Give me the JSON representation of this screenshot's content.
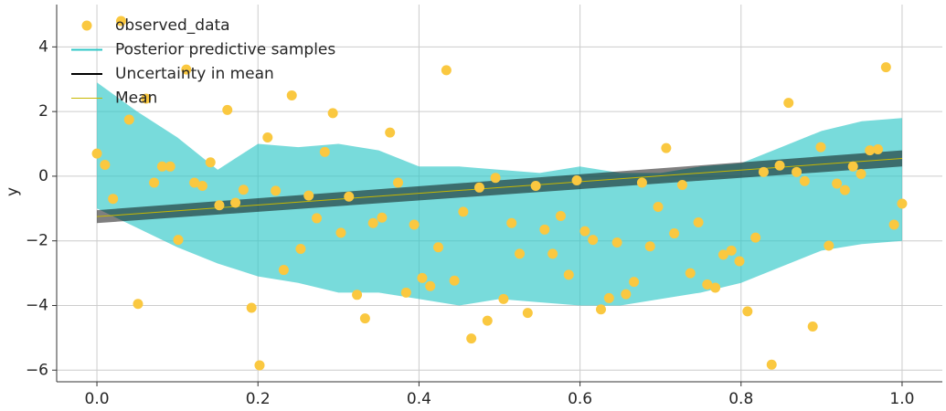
{
  "chart_data": {
    "type": "scatter",
    "ylabel": "y",
    "xlim": [
      -0.05,
      1.05
    ],
    "ylim": [
      -6.36,
      5.31
    ],
    "xticks": [
      {
        "value": 0,
        "label": "0.0"
      },
      0.2,
      0.4,
      0.6,
      0.8,
      {
        "value": 1,
        "label": "1.0"
      }
    ],
    "yticks": [
      {
        "value": -6,
        "label": "−6"
      },
      {
        "value": -4,
        "label": "−4"
      },
      {
        "value": -2,
        "label": "−2"
      },
      0,
      2,
      4
    ],
    "grid": true,
    "legend": "upper left",
    "series": [
      {
        "name": "Posterior predictive samples",
        "kind": "band",
        "color": "#2fc7c7",
        "x": [
          0,
          0.05,
          0.1,
          0.15,
          0.2,
          0.25,
          0.3,
          0.35,
          0.4,
          0.45,
          0.5,
          0.55,
          0.6,
          0.65,
          0.7,
          0.75,
          0.8,
          0.85,
          0.9,
          0.95,
          1.0
        ],
        "upper": [
          2.9,
          2.0,
          1.2,
          0.2,
          1.0,
          0.9,
          1.0,
          0.8,
          0.3,
          0.3,
          0.2,
          0.1,
          0.3,
          0.1,
          0.1,
          0.3,
          0.4,
          0.9,
          1.4,
          1.7,
          1.8
        ],
        "lower": [
          -1.0,
          -1.6,
          -2.2,
          -2.7,
          -3.1,
          -3.3,
          -3.6,
          -3.6,
          -3.8,
          -4.0,
          -3.8,
          -3.9,
          -4.0,
          -4.0,
          -3.8,
          -3.6,
          -3.3,
          -2.8,
          -2.3,
          -2.1,
          -2.0
        ]
      },
      {
        "name": "Uncertainty in mean",
        "kind": "band",
        "color": "#000000",
        "x": [
          0,
          1.0
        ],
        "upper": [
          -1.05,
          0.8
        ],
        "lower": [
          -1.45,
          0.3
        ]
      },
      {
        "name": "Mean",
        "kind": "line",
        "color": "#c8b800",
        "x": [
          0,
          1.0
        ],
        "values": [
          -1.25,
          0.55
        ]
      },
      {
        "name": "observed_data",
        "kind": "scatter",
        "color": "#fac840",
        "x": [
          0,
          0.01,
          0.02,
          0.03,
          0.04,
          0.051,
          0.061,
          0.071,
          0.081,
          0.091,
          0.101,
          0.111,
          0.121,
          0.131,
          0.141,
          0.152,
          0.162,
          0.172,
          0.182,
          0.192,
          0.202,
          0.212,
          0.222,
          0.232,
          0.242,
          0.253,
          0.263,
          0.273,
          0.283,
          0.293,
          0.303,
          0.313,
          0.323,
          0.333,
          0.343,
          0.354,
          0.364,
          0.374,
          0.384,
          0.394,
          0.404,
          0.414,
          0.424,
          0.434,
          0.444,
          0.455,
          0.465,
          0.475,
          0.485,
          0.495,
          0.505,
          0.515,
          0.525,
          0.535,
          0.545,
          0.556,
          0.566,
          0.576,
          0.586,
          0.596,
          0.606,
          0.616,
          0.626,
          0.636,
          0.646,
          0.657,
          0.667,
          0.677,
          0.687,
          0.697,
          0.707,
          0.717,
          0.727,
          0.737,
          0.747,
          0.758,
          0.768,
          0.778,
          0.788,
          0.798,
          0.808,
          0.818,
          0.828,
          0.838,
          0.848,
          0.859,
          0.869,
          0.879,
          0.889,
          0.899,
          0.909,
          0.919,
          0.929,
          0.939,
          0.949,
          0.96,
          0.97,
          0.98,
          0.99,
          1.0
        ],
        "values": [
          0.7,
          0.35,
          -0.7,
          4.8,
          1.75,
          -3.95,
          2.4,
          -0.2,
          0.3,
          0.3,
          -1.97,
          3.3,
          -0.2,
          -0.3,
          0.43,
          -0.9,
          2.05,
          -0.82,
          -0.42,
          -4.07,
          -5.85,
          1.2,
          -0.45,
          -2.9,
          2.5,
          -2.25,
          -0.6,
          -1.3,
          0.75,
          1.95,
          -1.75,
          -0.63,
          -3.67,
          -4.4,
          -1.45,
          -1.28,
          1.35,
          -0.2,
          -3.6,
          -1.5,
          -3.15,
          -3.4,
          -2.2,
          3.28,
          -3.23,
          -1.1,
          -5.02,
          -0.35,
          -4.47,
          -0.05,
          -3.8,
          -1.45,
          -2.4,
          -4.23,
          -0.3,
          -1.65,
          -2.4,
          -1.23,
          -3.05,
          -0.13,
          -1.7,
          -1.97,
          -4.12,
          -3.77,
          -2.05,
          -3.65,
          -3.27,
          -0.2,
          -2.17,
          -0.95,
          0.87,
          -1.77,
          -0.27,
          -3.0,
          -1.43,
          -3.35,
          -3.45,
          -2.43,
          -2.3,
          -2.63,
          -4.18,
          -1.9,
          0.13,
          -5.83,
          0.33,
          2.27,
          0.13,
          -0.15,
          -4.65,
          0.9,
          -2.15,
          -0.23,
          -0.43,
          0.3,
          0.07,
          0.8,
          0.83,
          3.37,
          -1.5,
          -0.85
        ]
      }
    ]
  }
}
